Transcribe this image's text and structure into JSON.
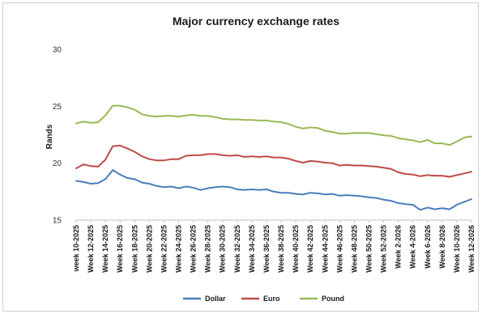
{
  "chart_data": {
    "type": "line",
    "title": "Major currency exchange rates",
    "ylabel": "Rands",
    "xlabel": "",
    "ylim": [
      15,
      30
    ],
    "yticks": [
      15,
      20,
      25,
      30
    ],
    "grid": false,
    "legend_position": "bottom",
    "x_labels": [
      "week 10-2025",
      "Week 12-2025",
      "Week 14-2025",
      "Week 16-2025",
      "Week 18-2025",
      "Week 20-2025",
      "Week 22-2025",
      "Week 24-2025",
      "Week 26-2025",
      "Week 28-2025",
      "Week 30-2025",
      "Week 32-2025",
      "Week 34-2025",
      "Week 36-2025",
      "Week 38-2025",
      "Week 40-2025",
      "Week 42-2025",
      "Week 44-2025",
      "Week 46-2025",
      "Week 48-2025",
      "Week 50-2025",
      "Week 52-2025",
      "Week 2-2026",
      "Week 4-2026",
      "Week 6-2026",
      "Week 8-2026",
      "Week 10-2026",
      "Week 12-2026"
    ],
    "series": [
      {
        "name": "Dollar",
        "color": "#4a7ebb",
        "values": [
          18.45,
          18.35,
          18.2,
          18.25,
          18.6,
          19.4,
          19.0,
          18.7,
          18.6,
          18.3,
          18.2,
          18.0,
          17.9,
          17.95,
          17.8,
          17.95,
          17.85,
          17.65,
          17.8,
          17.9,
          17.95,
          17.9,
          17.7,
          17.65,
          17.7,
          17.65,
          17.7,
          17.5,
          17.4,
          17.4,
          17.3,
          17.25,
          17.4,
          17.35,
          17.25,
          17.3,
          17.15,
          17.2,
          17.15,
          17.1,
          17.0,
          16.95,
          16.8,
          16.7,
          16.5,
          16.4,
          16.35,
          15.9,
          16.1,
          15.95,
          16.05,
          15.95,
          16.35,
          16.6,
          16.85
        ]
      },
      {
        "name": "Euro",
        "color": "#be4b48",
        "values": [
          19.55,
          19.9,
          19.75,
          19.7,
          20.3,
          21.5,
          21.55,
          21.3,
          21.0,
          20.6,
          20.35,
          20.25,
          20.25,
          20.35,
          20.35,
          20.65,
          20.7,
          20.7,
          20.8,
          20.8,
          20.7,
          20.65,
          20.7,
          20.55,
          20.6,
          20.55,
          20.6,
          20.5,
          20.5,
          20.4,
          20.2,
          20.05,
          20.2,
          20.15,
          20.05,
          20.0,
          19.8,
          19.85,
          19.8,
          19.8,
          19.75,
          19.7,
          19.6,
          19.5,
          19.2,
          19.05,
          19.0,
          18.85,
          18.95,
          18.9,
          18.9,
          18.8,
          18.95,
          19.1,
          19.25
        ]
      },
      {
        "name": "Pound",
        "color": "#98b954",
        "values": [
          23.5,
          23.65,
          23.55,
          23.6,
          24.2,
          25.05,
          25.05,
          24.9,
          24.7,
          24.3,
          24.15,
          24.1,
          24.15,
          24.15,
          24.1,
          24.2,
          24.25,
          24.15,
          24.15,
          24.05,
          23.9,
          23.85,
          23.85,
          23.8,
          23.8,
          23.75,
          23.75,
          23.65,
          23.6,
          23.45,
          23.2,
          23.05,
          23.15,
          23.1,
          22.85,
          22.75,
          22.6,
          22.6,
          22.65,
          22.65,
          22.65,
          22.55,
          22.45,
          22.4,
          22.2,
          22.1,
          22.0,
          21.85,
          22.05,
          21.75,
          21.75,
          21.6,
          21.9,
          22.25,
          22.35
        ]
      }
    ]
  }
}
